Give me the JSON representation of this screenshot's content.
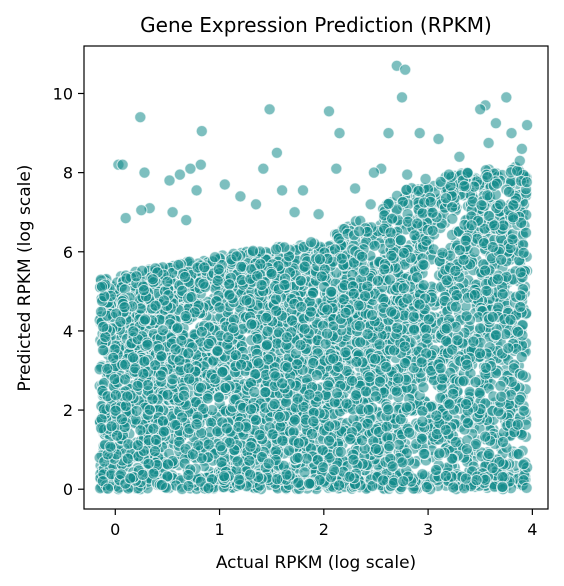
{
  "chart_data": {
    "type": "scatter",
    "title": "Gene Expression Prediction (RPKM)",
    "xlabel": "Actual RPKM (log scale)",
    "ylabel": "Predicted RPKM (log scale)",
    "xlim": [
      -0.3,
      4.15
    ],
    "ylim": [
      -0.5,
      11.2
    ],
    "xticks": [
      0,
      1,
      2,
      3,
      4
    ],
    "yticks": [
      0,
      2,
      4,
      6,
      8,
      10
    ],
    "grid": false,
    "point_color": "#138a8a",
    "series": [
      {
        "points": [
          [
            2.7,
            10.7
          ],
          [
            2.75,
            9.9
          ],
          [
            2.78,
            10.6
          ],
          [
            3.55,
            9.7
          ],
          [
            3.5,
            9.6
          ],
          [
            3.75,
            9.9
          ],
          [
            1.48,
            9.6
          ],
          [
            2.05,
            9.55
          ],
          [
            0.24,
            9.4
          ],
          [
            3.95,
            9.2
          ],
          [
            3.65,
            9.25
          ],
          [
            0.83,
            9.05
          ],
          [
            2.15,
            9.0
          ],
          [
            2.62,
            9.0
          ],
          [
            2.92,
            9.0
          ],
          [
            3.8,
            9.0
          ],
          [
            3.1,
            8.85
          ],
          [
            3.58,
            8.75
          ],
          [
            3.9,
            8.6
          ],
          [
            1.55,
            8.5
          ],
          [
            3.3,
            8.4
          ],
          [
            3.88,
            8.3
          ],
          [
            0.03,
            8.2
          ],
          [
            0.07,
            8.2
          ],
          [
            0.82,
            8.2
          ],
          [
            2.12,
            8.1
          ],
          [
            2.55,
            8.1
          ],
          [
            0.72,
            8.1
          ],
          [
            1.42,
            8.1
          ],
          [
            0.28,
            8.0
          ],
          [
            2.48,
            8.0
          ],
          [
            0.52,
            7.8
          ],
          [
            1.05,
            7.7
          ],
          [
            0.62,
            7.95
          ],
          [
            1.6,
            7.55
          ],
          [
            1.8,
            7.55
          ],
          [
            2.3,
            7.6
          ],
          [
            0.78,
            7.55
          ],
          [
            2.8,
            7.95
          ],
          [
            3.2,
            7.95
          ],
          [
            1.2,
            7.4
          ],
          [
            0.33,
            7.1
          ],
          [
            0.25,
            7.05
          ],
          [
            1.35,
            7.2
          ],
          [
            1.72,
            7.0
          ],
          [
            0.55,
            7.0
          ],
          [
            0.1,
            6.85
          ],
          [
            0.68,
            6.8
          ],
          [
            1.95,
            6.95
          ],
          [
            2.45,
            7.2
          ]
        ],
        "bulk": {
          "description": "dense cloud of points",
          "x_range": [
            -0.15,
            3.95
          ],
          "y_range": [
            0,
            6.2
          ],
          "upper_edge_at_x": [
            [
              0,
              5.4
            ],
            [
              1,
              5.9
            ],
            [
              2,
              6.3
            ],
            [
              3,
              7.9
            ],
            [
              3.9,
              8.2
            ]
          ]
        }
      }
    ]
  }
}
